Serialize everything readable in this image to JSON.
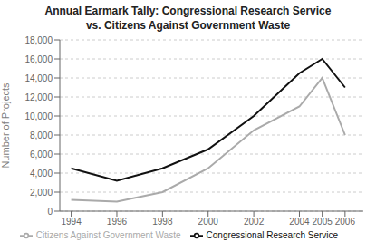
{
  "chart_data": {
    "type": "line",
    "title": "Annual Earmark Tally: Congressional Research Service\nvs. Citizens Against Government Waste",
    "ylabel": "Number of Projects",
    "x": [
      1994,
      1996,
      1998,
      2000,
      2002,
      2004,
      2005,
      2006
    ],
    "series": [
      {
        "name": "Congressional Research Service",
        "color": "#111111",
        "values": [
          4500,
          3200,
          4500,
          6500,
          10000,
          14500,
          16000,
          13000
        ]
      },
      {
        "name": "Citizens Against Government Waste",
        "color": "#aaaaaa",
        "values": [
          1200,
          1000,
          2000,
          4500,
          8500,
          11000,
          14000,
          8000
        ]
      }
    ],
    "xlim": [
      1993.5,
      2006.8
    ],
    "xticks": [
      1994,
      1996,
      1998,
      2000,
      2002,
      2004,
      2005,
      2006
    ],
    "ylim": [
      0,
      18000
    ],
    "yticks": [
      0,
      {
        "value": 2000,
        "label": "2,000"
      },
      {
        "value": 4000,
        "label": "4,000"
      },
      {
        "value": 6000,
        "label": "6,000"
      },
      {
        "value": 8000,
        "label": "8,000"
      },
      {
        "value": 10000,
        "label": "10,000"
      },
      {
        "value": 12000,
        "label": "12,000"
      },
      {
        "value": 14000,
        "label": "14,000"
      },
      {
        "value": 16000,
        "label": "16,000"
      },
      {
        "value": 18000,
        "label": "18,000"
      }
    ],
    "grid": true,
    "legend": "bottom"
  }
}
